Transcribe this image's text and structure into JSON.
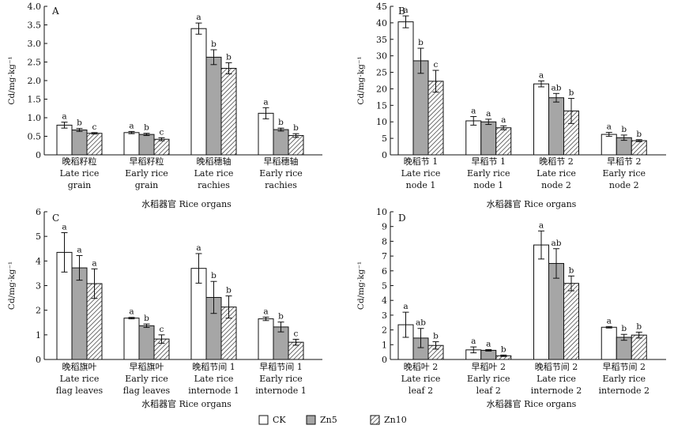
{
  "x_axis_label": "水稻器官 Rice organs",
  "legend": [
    {
      "name": "CK",
      "pattern": "white"
    },
    {
      "name": "Zn5",
      "pattern": "gray"
    },
    {
      "name": "Zn10",
      "pattern": "hatch"
    }
  ],
  "colors": {
    "ck": "#ffffff",
    "zn5": "#a6a6a6",
    "zn10_hatch": "#222222",
    "axis": "#111111"
  },
  "chart_data": [
    {
      "type": "bar",
      "panel": "A",
      "ylabel": "Cd/mg·kg⁻¹",
      "ylim": [
        0,
        4.0
      ],
      "yticks": [
        "0",
        "0.5",
        "1.0",
        "1.5",
        "2.0",
        "2.5",
        "3.0",
        "3.5",
        "4.0"
      ],
      "categories": [
        [
          "晚稻籽粒",
          "Late rice",
          "grain"
        ],
        [
          "早稻籽粒",
          "Early rice",
          "grain"
        ],
        [
          "晚稻穗轴",
          "Late rice",
          "rachies"
        ],
        [
          "早稻穗轴",
          "Early rice",
          "rachies"
        ]
      ],
      "series": [
        {
          "name": "CK",
          "values": [
            0.8,
            0.6,
            3.4,
            1.12
          ],
          "errors": [
            0.08,
            0.03,
            0.15,
            0.15
          ],
          "letters": [
            "a",
            "a",
            "a",
            "a"
          ]
        },
        {
          "name": "Zn5",
          "values": [
            0.67,
            0.55,
            2.63,
            0.68
          ],
          "errors": [
            0.04,
            0.03,
            0.2,
            0.04
          ],
          "letters": [
            "b",
            "b",
            "b",
            "b"
          ]
        },
        {
          "name": "Zn10",
          "values": [
            0.58,
            0.42,
            2.33,
            0.52
          ],
          "errors": [
            0.02,
            0.04,
            0.15,
            0.05
          ],
          "letters": [
            "c",
            "c",
            "b",
            "b"
          ]
        }
      ],
      "xlabel": "水稻器官 Rice organs"
    },
    {
      "type": "bar",
      "panel": "B",
      "ylabel": "Cd/mg·kg⁻¹",
      "ylim": [
        0,
        45
      ],
      "yticks": [
        "0",
        "5",
        "10",
        "15",
        "20",
        "25",
        "30",
        "35",
        "40",
        "45"
      ],
      "categories": [
        [
          "晚稻节 1",
          "Late rice",
          "node 1"
        ],
        [
          "早稻节 1",
          "Early rice",
          "node 1"
        ],
        [
          "晚稻节 2",
          "Late rice",
          "node 2"
        ],
        [
          "早稻节 2",
          "Early rice",
          "node 2"
        ]
      ],
      "series": [
        {
          "name": "CK",
          "values": [
            40.3,
            10.3,
            21.5,
            6.2
          ],
          "errors": [
            1.8,
            1.3,
            0.9,
            0.6
          ],
          "letters": [
            "a",
            "a",
            "a",
            "a"
          ]
        },
        {
          "name": "Zn5",
          "values": [
            28.5,
            10.0,
            17.3,
            5.2
          ],
          "errors": [
            3.8,
            0.8,
            1.3,
            0.8
          ],
          "letters": [
            "b",
            "a",
            "ab",
            "b"
          ]
        },
        {
          "name": "Zn10",
          "values": [
            22.3,
            8.2,
            13.3,
            4.3
          ],
          "errors": [
            3.3,
            0.6,
            3.8,
            0.3
          ],
          "letters": [
            "c",
            "a",
            "b",
            "b"
          ]
        }
      ],
      "xlabel": "水稻器官 Rice organs"
    },
    {
      "type": "bar",
      "panel": "C",
      "ylabel": "Cd/mg·kg⁻¹",
      "ylim": [
        0,
        6
      ],
      "yticks": [
        "0",
        "1",
        "2",
        "3",
        "4",
        "5",
        "6"
      ],
      "categories": [
        [
          "晚稻旗叶",
          "Late rice",
          "flag leaves"
        ],
        [
          "早稻旗叶",
          "Early rice",
          "flag leaves"
        ],
        [
          "晚稻节间 1",
          "Late rice",
          "internode 1"
        ],
        [
          "早稻节间 1",
          "Early rice",
          "internode 1"
        ]
      ],
      "series": [
        {
          "name": "CK",
          "values": [
            4.35,
            1.68,
            3.7,
            1.65
          ],
          "errors": [
            0.8,
            0.03,
            0.6,
            0.07
          ],
          "letters": [
            "a",
            "a",
            "a",
            "a"
          ]
        },
        {
          "name": "Zn5",
          "values": [
            3.72,
            1.37,
            2.52,
            1.32
          ],
          "errors": [
            0.5,
            0.07,
            0.65,
            0.2
          ],
          "letters": [
            "a",
            "b",
            "b",
            "b"
          ]
        },
        {
          "name": "Zn10",
          "values": [
            3.08,
            0.83,
            2.13,
            0.7
          ],
          "errors": [
            0.6,
            0.17,
            0.45,
            0.12
          ],
          "letters": [
            "a",
            "c",
            "b",
            "c"
          ]
        }
      ],
      "xlabel": "水稻器官 Rice organs"
    },
    {
      "type": "bar",
      "panel": "D",
      "ylabel": "Cd/mg·kg⁻¹",
      "ylim": [
        0,
        10
      ],
      "yticks": [
        "0",
        "1",
        "2",
        "3",
        "4",
        "5",
        "6",
        "7",
        "8",
        "9",
        "10"
      ],
      "categories": [
        [
          "晚稻叶 2",
          "Late rice",
          "leaf 2"
        ],
        [
          "早稻叶 2",
          "Early rice",
          "leaf 2"
        ],
        [
          "晚稻节间 2",
          "Late rice",
          "internode 2"
        ],
        [
          "早稻节间 2",
          "Early rice",
          "internode 2"
        ]
      ],
      "series": [
        {
          "name": "CK",
          "values": [
            2.35,
            0.65,
            7.75,
            2.18
          ],
          "errors": [
            0.85,
            0.2,
            0.95,
            0.05
          ],
          "letters": [
            "a",
            "a",
            "a",
            "a"
          ]
        },
        {
          "name": "Zn5",
          "values": [
            1.45,
            0.62,
            6.5,
            1.5
          ],
          "errors": [
            0.65,
            0.05,
            1.0,
            0.2
          ],
          "letters": [
            "ab",
            "a",
            "ab",
            "b"
          ]
        },
        {
          "name": "Zn10",
          "values": [
            0.95,
            0.25,
            5.15,
            1.65
          ],
          "errors": [
            0.25,
            0.05,
            0.5,
            0.2
          ],
          "letters": [
            "b",
            "b",
            "b",
            "b"
          ]
        }
      ],
      "xlabel": "水稻器官 Rice organs"
    }
  ]
}
